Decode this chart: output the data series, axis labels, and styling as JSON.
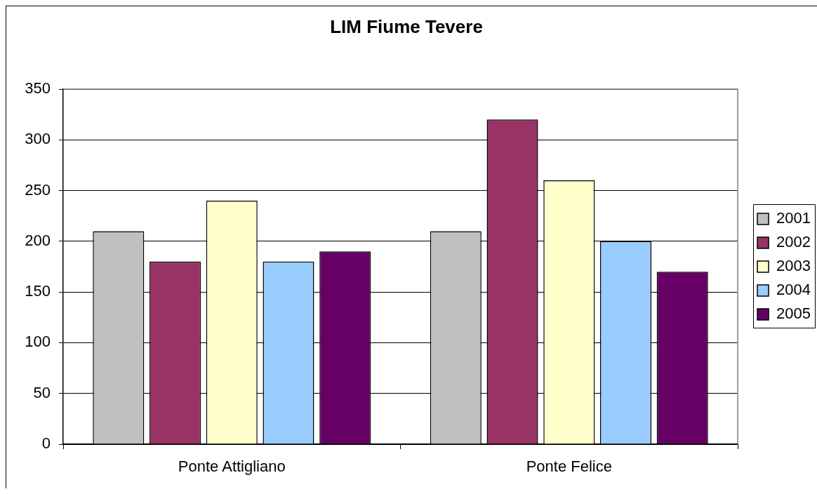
{
  "chart_data": {
    "type": "bar",
    "title": "LIM Fiume Tevere",
    "categories": [
      "Ponte Attigliano",
      "Ponte Felice"
    ],
    "series": [
      {
        "name": "2001",
        "color": "#c0c0c0",
        "values": [
          210,
          210
        ]
      },
      {
        "name": "2002",
        "color": "#993366",
        "values": [
          180,
          320
        ]
      },
      {
        "name": "2003",
        "color": "#ffffcc",
        "values": [
          240,
          260
        ]
      },
      {
        "name": "2004",
        "color": "#99ccff",
        "values": [
          180,
          200
        ]
      },
      {
        "name": "2005",
        "color": "#660066",
        "values": [
          190,
          170
        ]
      }
    ],
    "ylim": [
      0,
      350
    ],
    "yticks": [
      0,
      50,
      100,
      150,
      200,
      250,
      300,
      350
    ],
    "grid": "y",
    "legend": "right"
  }
}
